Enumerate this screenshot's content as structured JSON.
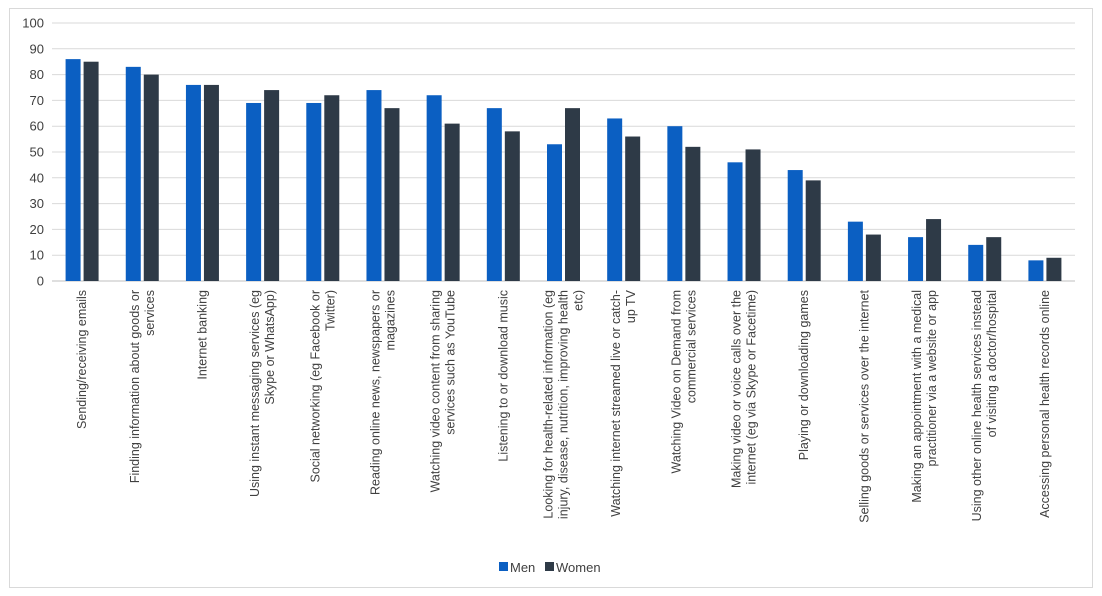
{
  "chart_data": {
    "type": "bar",
    "title": "",
    "xlabel": "",
    "ylabel": "",
    "ylim": [
      0,
      100
    ],
    "yticks": [
      0,
      10,
      20,
      30,
      40,
      50,
      60,
      70,
      80,
      90,
      100
    ],
    "grid": true,
    "legend_position": "bottom",
    "categories": [
      [
        "Sending/receiving emails"
      ],
      [
        "Finding information about goods or",
        "services"
      ],
      [
        "Internet banking"
      ],
      [
        "Using instant messaging services (eg",
        "Skype or WhatsApp)"
      ],
      [
        "Social networking (eg Facebook or",
        "Twitter)"
      ],
      [
        "Reading online news, newspapers or",
        "magazines"
      ],
      [
        "Watching video content from sharing",
        "services such as YouTube"
      ],
      [
        "Listening to or download music"
      ],
      [
        "Looking for health-related information (eg",
        "injury, disease, nutrition, improving health",
        "etc)"
      ],
      [
        "Watching internet streamed live or catch-",
        "up TV"
      ],
      [
        "Watching Video on Demand from",
        "commercial services"
      ],
      [
        "Making video or voice calls over the",
        "internet (eg via Skype or Facetime)"
      ],
      [
        "Playing or downloading games"
      ],
      [
        "Selling goods or services over the internet"
      ],
      [
        "Making an appointment with a medical",
        "practitioner via a website or app"
      ],
      [
        "Using other online health services instead",
        "of visiting a doctor/hospital"
      ],
      [
        "Accessing personal health records online"
      ]
    ],
    "series": [
      {
        "name": "Men",
        "color": "#0b5fc2",
        "values": [
          86,
          83,
          76,
          69,
          69,
          74,
          72,
          67,
          53,
          63,
          60,
          46,
          43,
          23,
          17,
          14,
          8
        ]
      },
      {
        "name": "Women",
        "color": "#2e3a47",
        "values": [
          85,
          80,
          76,
          74,
          72,
          67,
          61,
          58,
          67,
          56,
          52,
          51,
          39,
          18,
          24,
          17,
          9
        ]
      }
    ]
  }
}
